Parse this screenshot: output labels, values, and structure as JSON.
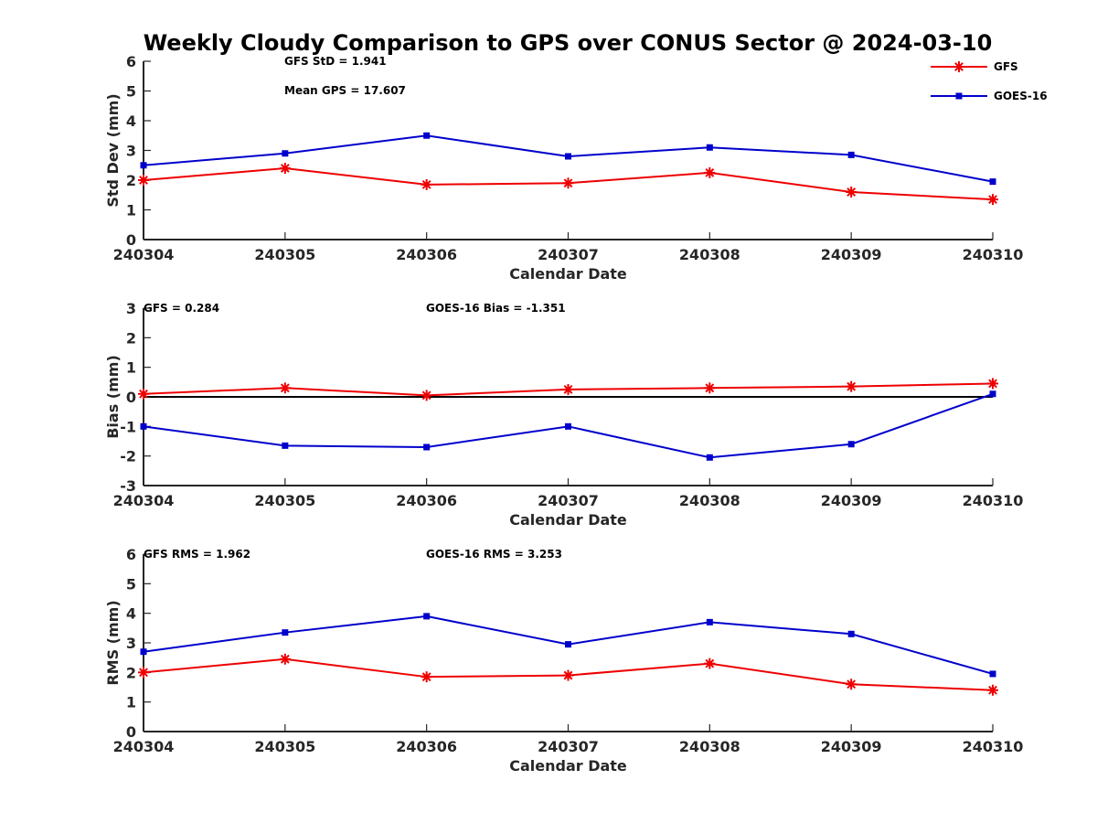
{
  "title": "Weekly Cloudy Comparison to GPS over CONUS Sector @ 2024-03-10",
  "colors": {
    "GFS": "#ee0000",
    "GOES-16": "#0000cc",
    "zero_line": "#000000"
  },
  "legend": {
    "placement": "top-right",
    "entries": [
      "GFS",
      "GOES-16"
    ]
  },
  "chart_data": [
    {
      "type": "line",
      "ylabel": "Std Dev (mm)",
      "xlabel": "Calendar Date",
      "categories": [
        "240304",
        "240305",
        "240306",
        "240307",
        "240308",
        "240309",
        "240310"
      ],
      "ylim": [
        0,
        6
      ],
      "yticks": [
        "0",
        "1",
        "2",
        "3",
        "4",
        "5",
        "6"
      ],
      "annotations": [
        "GFS StD = 1.941",
        "Mean GPS = 17.607"
      ],
      "series": [
        {
          "name": "GFS",
          "marker": "star",
          "values": [
            2.0,
            2.4,
            1.85,
            1.9,
            2.25,
            1.6,
            1.35
          ]
        },
        {
          "name": "GOES-16",
          "marker": "square",
          "values": [
            2.5,
            2.9,
            3.5,
            2.8,
            3.1,
            2.85,
            1.95
          ]
        }
      ]
    },
    {
      "type": "line",
      "ylabel": "Bias (mm)",
      "xlabel": "Calendar Date",
      "categories": [
        "240304",
        "240305",
        "240306",
        "240307",
        "240308",
        "240309",
        "240310"
      ],
      "ylim": [
        -3,
        3
      ],
      "yticks": [
        "-3",
        "-2",
        "-1",
        "0",
        "1",
        "2",
        "3"
      ],
      "annotations": [
        "GFS = 0.284",
        "GOES-16 Bias  = -1.351"
      ],
      "zero_line": true,
      "series": [
        {
          "name": "GFS",
          "marker": "star",
          "values": [
            0.1,
            0.3,
            0.05,
            0.25,
            0.3,
            0.35,
            0.45
          ]
        },
        {
          "name": "GOES-16",
          "marker": "square",
          "values": [
            -1.0,
            -1.65,
            -1.7,
            -1.0,
            -2.05,
            -1.6,
            0.1
          ]
        }
      ]
    },
    {
      "type": "line",
      "ylabel": "RMS (mm)",
      "xlabel": "Calendar Date",
      "categories": [
        "240304",
        "240305",
        "240306",
        "240307",
        "240308",
        "240309",
        "240310"
      ],
      "ylim": [
        0,
        6
      ],
      "yticks": [
        "0",
        "1",
        "2",
        "3",
        "4",
        "5",
        "6"
      ],
      "annotations": [
        "GFS RMS = 1.962",
        "GOES-16 RMS = 3.253"
      ],
      "series": [
        {
          "name": "GFS",
          "marker": "star",
          "values": [
            2.0,
            2.45,
            1.85,
            1.9,
            2.3,
            1.6,
            1.4
          ]
        },
        {
          "name": "GOES-16",
          "marker": "square",
          "values": [
            2.7,
            3.35,
            3.9,
            2.95,
            3.7,
            3.3,
            1.95
          ]
        }
      ]
    }
  ]
}
